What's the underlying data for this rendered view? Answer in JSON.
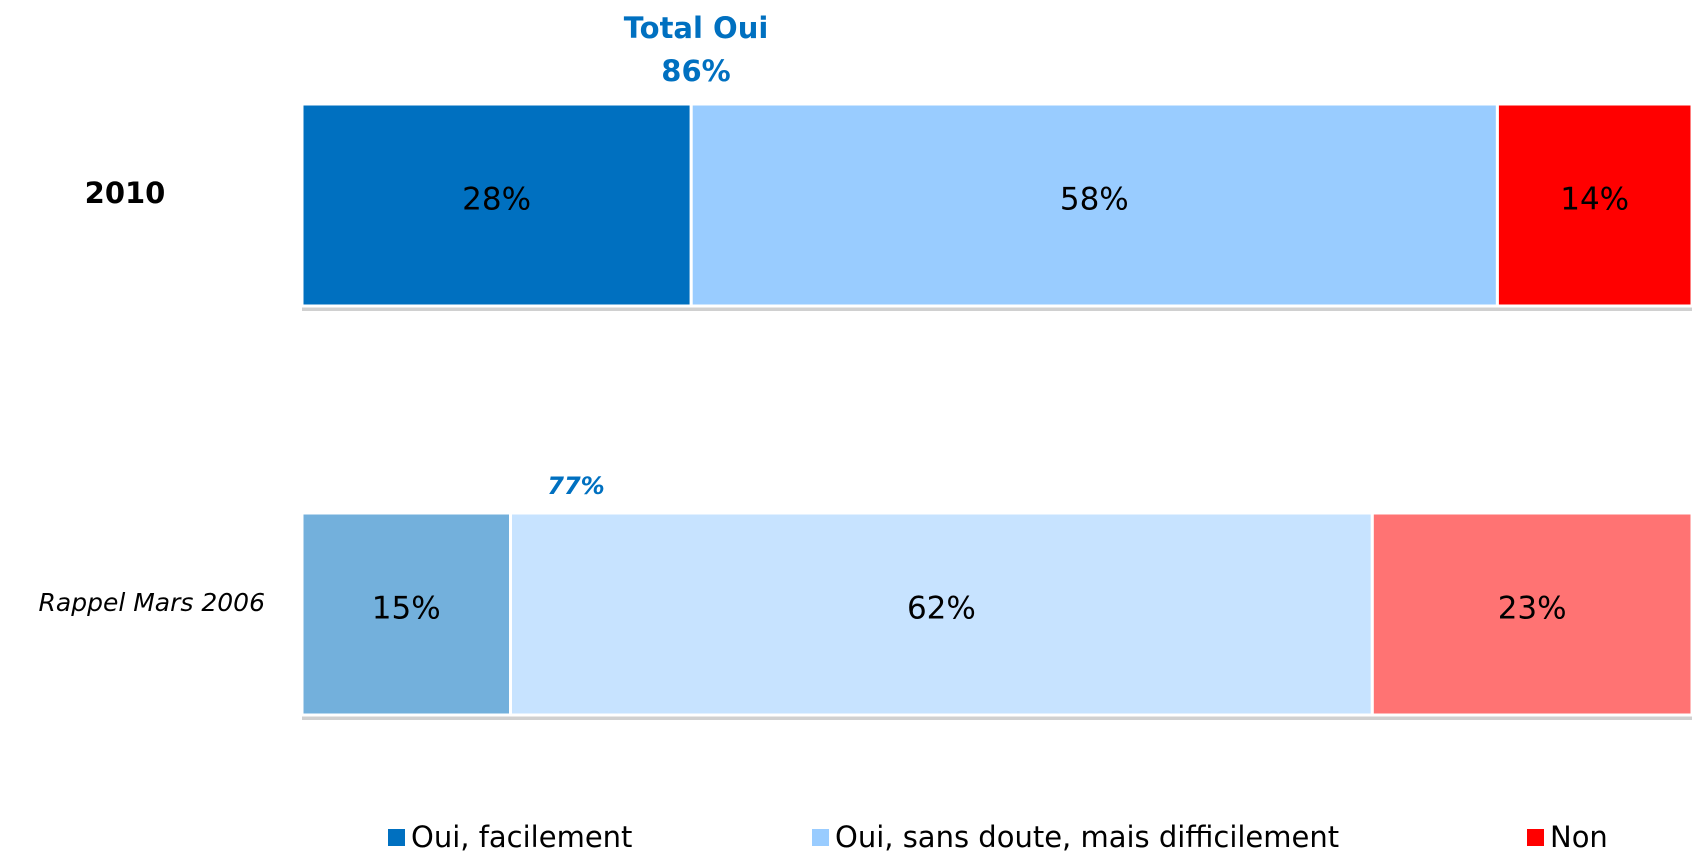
{
  "chart_data": {
    "type": "stacked_hbar",
    "categories": [
      "2010",
      "Rappel Mars 2006"
    ],
    "category_italic": [
      false,
      true
    ],
    "category_opacity": [
      1,
      0.55
    ],
    "series": [
      {
        "name": "Oui, facilement",
        "color": "#0070c0",
        "values": [
          28,
          15
        ],
        "value_labels": [
          "28%",
          "15%"
        ]
      },
      {
        "name": "Oui, sans doute, mais difficilement",
        "color": "#99ccff",
        "values": [
          58,
          62
        ],
        "value_labels": [
          "58%",
          "62%"
        ]
      },
      {
        "name": "Non",
        "color": "#ff0000",
        "values": [
          14,
          23
        ],
        "value_labels": [
          "14%",
          "23%"
        ]
      }
    ],
    "xlim": [
      0,
      100
    ],
    "annotations": [
      "Total  Oui",
      "86%",
      "77%"
    ],
    "legend": "bottom"
  }
}
